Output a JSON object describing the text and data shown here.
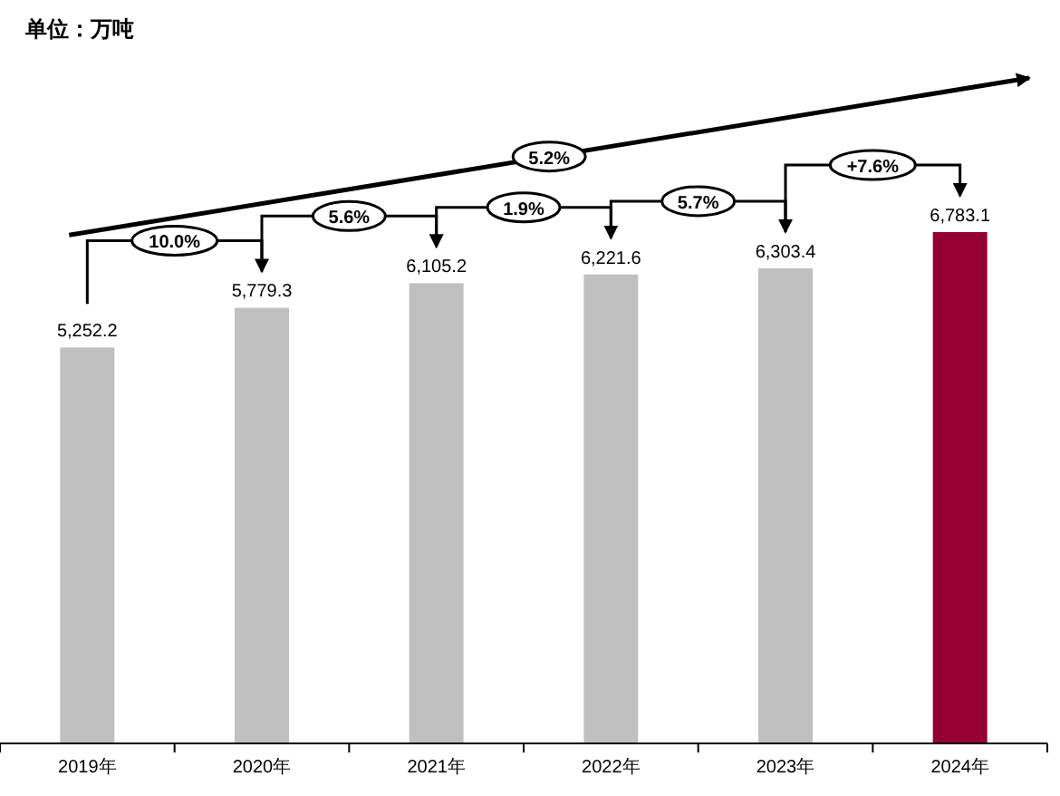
{
  "chart_data": {
    "type": "bar",
    "title": "单位：万吨",
    "categories": [
      "2019年",
      "2020年",
      "2021年",
      "2022年",
      "2023年",
      "2024年"
    ],
    "values": [
      5252.2,
      5779.3,
      6105.2,
      6221.6,
      6303.4,
      6783.1
    ],
    "colors": [
      "#c0c0c0",
      "#c0c0c0",
      "#c0c0c0",
      "#c0c0c0",
      "#c0c0c0",
      "#950033"
    ],
    "value_labels": [
      "5,252.2",
      "5,779.3",
      "6,105.2",
      "6,221.6",
      "6,303.4",
      "6,783.1"
    ],
    "annotations": [
      "10.0%",
      "5.6%",
      "1.9%",
      "5.7%",
      "+7.6%",
      "5.2%"
    ]
  }
}
